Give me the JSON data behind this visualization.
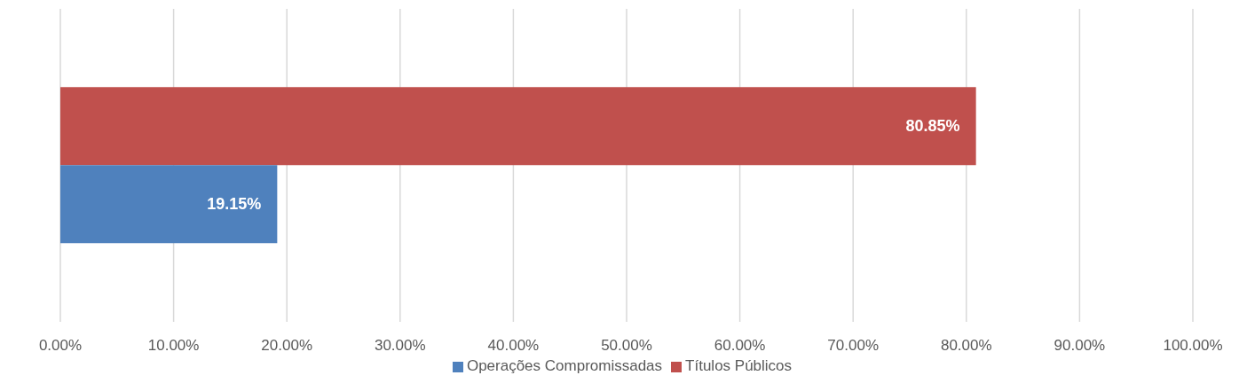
{
  "chart_data": {
    "type": "bar",
    "orientation": "horizontal",
    "categories": [
      null
    ],
    "series": [
      {
        "name": "Títulos Públicos",
        "color": "#c0504d",
        "values": [
          80.85
        ],
        "value_labels": [
          "80.85%"
        ]
      },
      {
        "name": "Operações Compromissadas",
        "color": "#4f81bd",
        "values": [
          19.15
        ],
        "value_labels": [
          "19.15%"
        ]
      }
    ],
    "xlim": [
      0,
      100
    ],
    "xticks": [
      {
        "value": 0,
        "label": "0.00%"
      },
      {
        "value": 10,
        "label": "10.00%"
      },
      {
        "value": 20,
        "label": "20.00%"
      },
      {
        "value": 30,
        "label": "30.00%"
      },
      {
        "value": 40,
        "label": "40.00%"
      },
      {
        "value": 50,
        "label": "50.00%"
      },
      {
        "value": 60,
        "label": "60.00%"
      },
      {
        "value": 70,
        "label": "70.00%"
      },
      {
        "value": 80,
        "label": "80.00%"
      },
      {
        "value": 90,
        "label": "90.00%"
      },
      {
        "value": 100,
        "label": "100.00%"
      }
    ],
    "grid": "x",
    "legend": "bottom"
  }
}
